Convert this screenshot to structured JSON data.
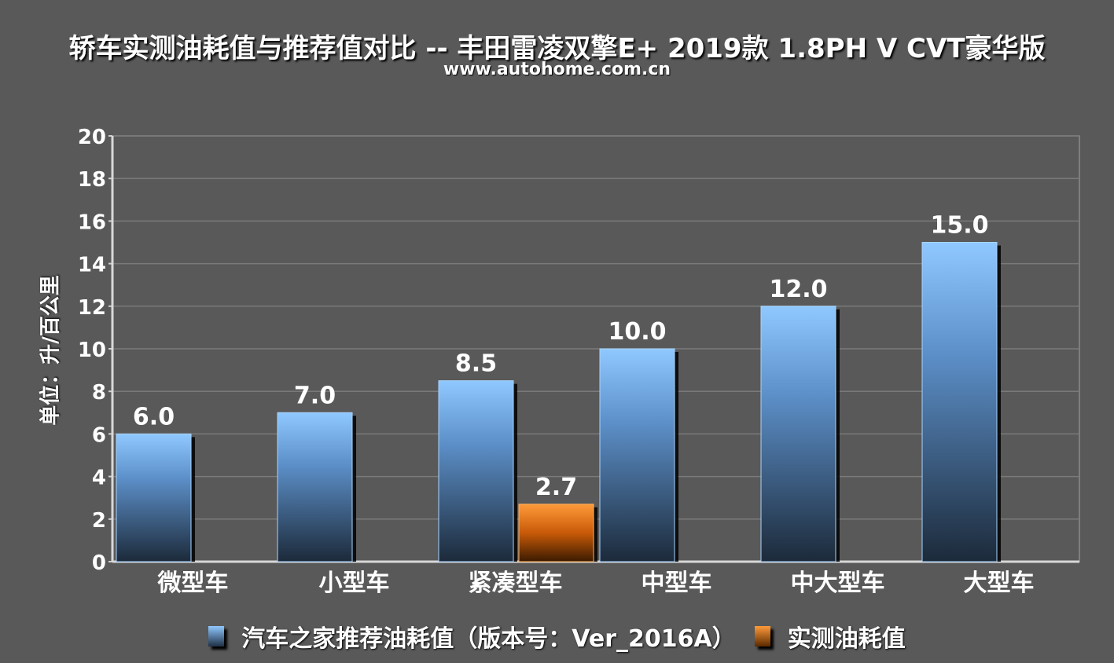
{
  "title": "轿车实测油耗值与推荐值对比 -- 丰田雷凌双擎E+ 2019款 1.8PH V CVT豪华版",
  "subtitle": "www.autohome.com.cn",
  "colors": {
    "background": "#595959",
    "recommended": "#7ab8ff",
    "measured": "#f07f14"
  },
  "chart_data": {
    "type": "bar",
    "title": "轿车实测油耗值与推荐值对比 -- 丰田雷凌双擎E+ 2019款 1.8PH V CVT豪华版",
    "ylabel": "单位：升/百公里",
    "xlabel": "",
    "ylim": [
      0,
      20
    ],
    "yticks": [
      0,
      2,
      4,
      6,
      8,
      10,
      12,
      14,
      16,
      18,
      20
    ],
    "grid": true,
    "categories": [
      "微型车",
      "小型车",
      "紧凑型车",
      "中型车",
      "中大型车",
      "大型车"
    ],
    "series": [
      {
        "name": "汽车之家推荐油耗值（版本号：Ver_2016A）",
        "values": [
          6.0,
          7.0,
          8.5,
          10.0,
          12.0,
          15.0
        ],
        "labels": [
          "6.0",
          "7.0",
          "8.5",
          "10.0",
          "12.0",
          "15.0"
        ]
      },
      {
        "name": "实测油耗值",
        "values": [
          null,
          null,
          2.7,
          null,
          null,
          null
        ],
        "labels": [
          "",
          "",
          "2.7",
          "",
          "",
          ""
        ]
      }
    ],
    "legend_position": "bottom"
  }
}
